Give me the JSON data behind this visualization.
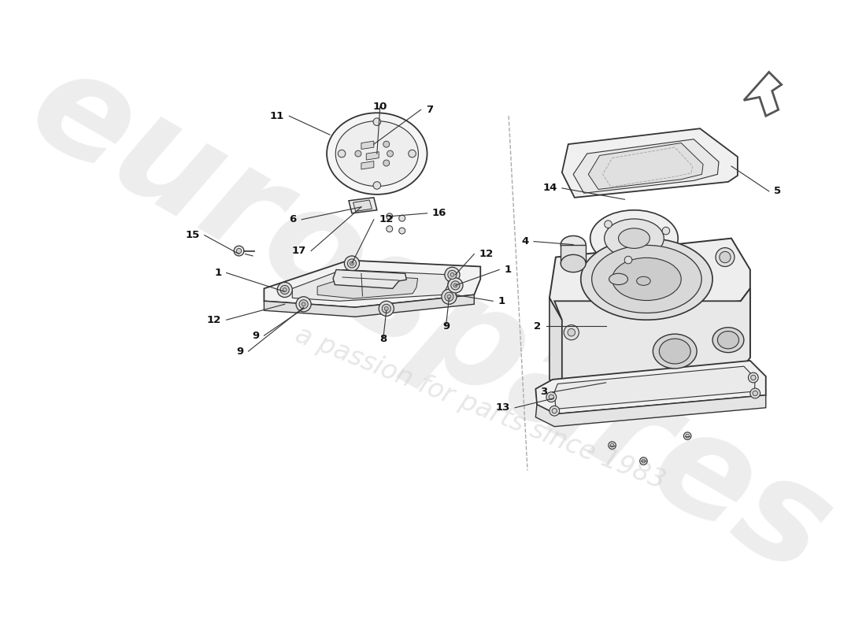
{
  "bg_color": "#ffffff",
  "line_color": "#333333",
  "fill_light": "#f0f0f0",
  "fill_mid": "#e0e0e0",
  "fill_dark": "#cccccc",
  "watermark_color1": "#d8d8d8",
  "watermark_color2": "#e8e8e8",
  "arrow_color": "#333333",
  "label_color": "#111111",
  "dashed_color": "#aaaaaa",
  "label_fontsize": 9.5
}
